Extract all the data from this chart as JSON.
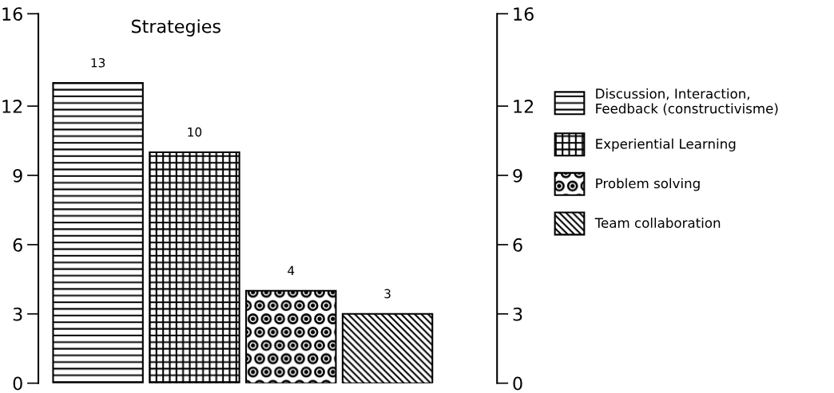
{
  "chart_data": {
    "type": "bar",
    "title": "Strategies",
    "categories": [
      null
    ],
    "series": [
      {
        "name": "Discussion, Interaction,\nFeedback (constructivisme)",
        "color": "#000000",
        "values": [
          13
        ]
      },
      {
        "name": "Experiential Learning",
        "color": "#000000",
        "values": [
          10
        ]
      },
      {
        "name": "Problem solving",
        "color": "#000000",
        "values": [
          4
        ]
      },
      {
        "name": "Team collaboration",
        "color": "#000000",
        "values": [
          3
        ]
      }
    ],
    "ylim": [
      0,
      16
    ],
    "yticks": [
      0,
      3,
      6,
      9,
      12,
      16
    ],
    "y2lim": [
      0,
      16
    ],
    "y2ticks": [
      0,
      3,
      6,
      9,
      12,
      16
    ],
    "data_labels": true,
    "legend": "right",
    "grid": false
  }
}
